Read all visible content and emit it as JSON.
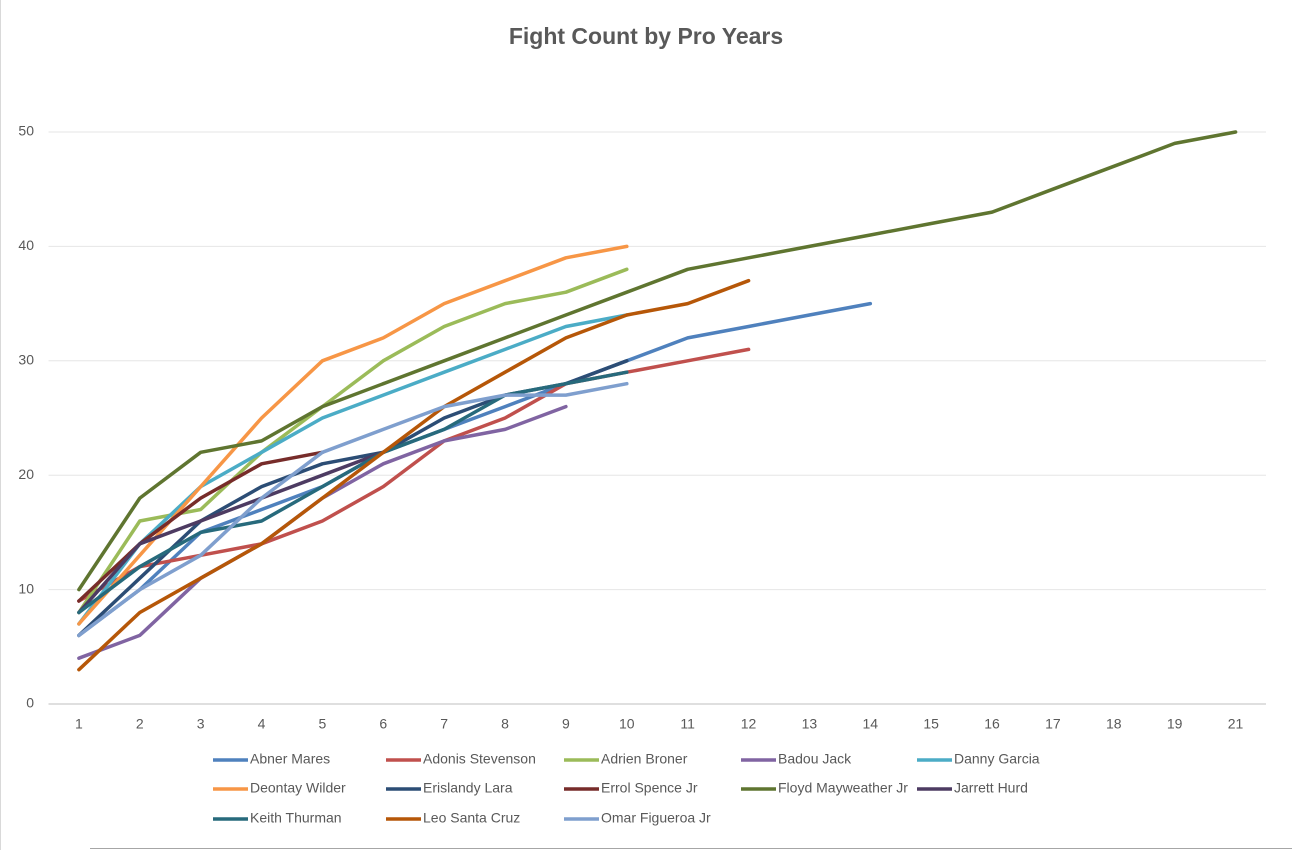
{
  "chart_data": {
    "type": "line",
    "title": "Fight Count by Pro Years",
    "categories": [
      "1",
      "2",
      "3",
      "4",
      "5",
      "6",
      "7",
      "8",
      "9",
      "10",
      "11",
      "12",
      "13",
      "14",
      "15",
      "16",
      "17",
      "18",
      "19",
      "21"
    ],
    "ylim": [
      0,
      50
    ],
    "yticks": [
      0,
      10,
      20,
      30,
      40,
      50
    ],
    "grid": true,
    "legend": "bottom",
    "series": [
      {
        "name": "Abner Mares",
        "color": "#4f81bd",
        "values": [
          6,
          10,
          15,
          17,
          19,
          22,
          24,
          26,
          28,
          30,
          32,
          33,
          34,
          35,
          null,
          null,
          null,
          null,
          null,
          null
        ]
      },
      {
        "name": "Adonis Stevenson",
        "color": "#c0504d",
        "values": [
          9,
          12,
          13,
          14,
          16,
          19,
          23,
          25,
          28,
          29,
          30,
          31,
          null,
          null,
          null,
          null,
          null,
          null,
          null,
          null
        ]
      },
      {
        "name": "Adrien Broner",
        "color": "#9bbb59",
        "values": [
          8,
          16,
          17,
          22,
          26,
          30,
          33,
          35,
          36,
          38,
          null,
          null,
          null,
          null,
          null,
          null,
          null,
          null,
          null,
          null
        ]
      },
      {
        "name": "Badou Jack",
        "color": "#8064a2",
        "values": [
          4,
          6,
          11,
          14,
          18,
          21,
          23,
          24,
          26,
          null,
          null,
          null,
          null,
          null,
          null,
          null,
          null,
          null,
          null,
          null
        ]
      },
      {
        "name": "Danny Garcia",
        "color": "#4bacc6",
        "values": [
          7,
          14,
          19,
          22,
          25,
          27,
          29,
          31,
          33,
          34,
          null,
          null,
          null,
          null,
          null,
          null,
          null,
          null,
          null,
          null
        ]
      },
      {
        "name": "Deontay Wilder",
        "color": "#f79646",
        "values": [
          7,
          13,
          19,
          25,
          30,
          32,
          35,
          37,
          39,
          40,
          null,
          null,
          null,
          null,
          null,
          null,
          null,
          null,
          null,
          null
        ]
      },
      {
        "name": "Erislandy Lara",
        "color": "#2c4d75",
        "values": [
          6,
          11,
          16,
          19,
          21,
          22,
          25,
          27,
          28,
          30,
          null,
          null,
          null,
          null,
          null,
          null,
          null,
          null,
          null,
          null
        ]
      },
      {
        "name": "Errol Spence Jr",
        "color": "#772c2a",
        "values": [
          9,
          14,
          18,
          21,
          22,
          null,
          null,
          null,
          null,
          null,
          null,
          null,
          null,
          null,
          null,
          null,
          null,
          null,
          null,
          null
        ]
      },
      {
        "name": "Floyd Mayweather Jr",
        "color": "#5f7530",
        "values": [
          10,
          18,
          22,
          23,
          26,
          28,
          30,
          32,
          34,
          36,
          38,
          39,
          40,
          41,
          42,
          43,
          45,
          47,
          49,
          50
        ]
      },
      {
        "name": "Jarrett Hurd",
        "color": "#4d3b62",
        "values": [
          8,
          14,
          16,
          18,
          20,
          22,
          null,
          null,
          null,
          null,
          null,
          null,
          null,
          null,
          null,
          null,
          null,
          null,
          null,
          null
        ]
      },
      {
        "name": "Keith Thurman",
        "color": "#276a7c",
        "values": [
          8,
          12,
          15,
          16,
          19,
          22,
          24,
          27,
          28,
          29,
          null,
          null,
          null,
          null,
          null,
          null,
          null,
          null,
          null,
          null
        ]
      },
      {
        "name": "Leo Santa Cruz",
        "color": "#b65708",
        "values": [
          3,
          8,
          11,
          14,
          18,
          22,
          26,
          29,
          32,
          34,
          35,
          37,
          null,
          null,
          null,
          null,
          null,
          null,
          null,
          null
        ]
      },
      {
        "name": "Omar Figueroa Jr",
        "color": "#7f9fce",
        "values": [
          6,
          10,
          13,
          18,
          22,
          24,
          26,
          27,
          27,
          28,
          null,
          null,
          null,
          null,
          null,
          null,
          null,
          null,
          null,
          null
        ]
      }
    ]
  }
}
